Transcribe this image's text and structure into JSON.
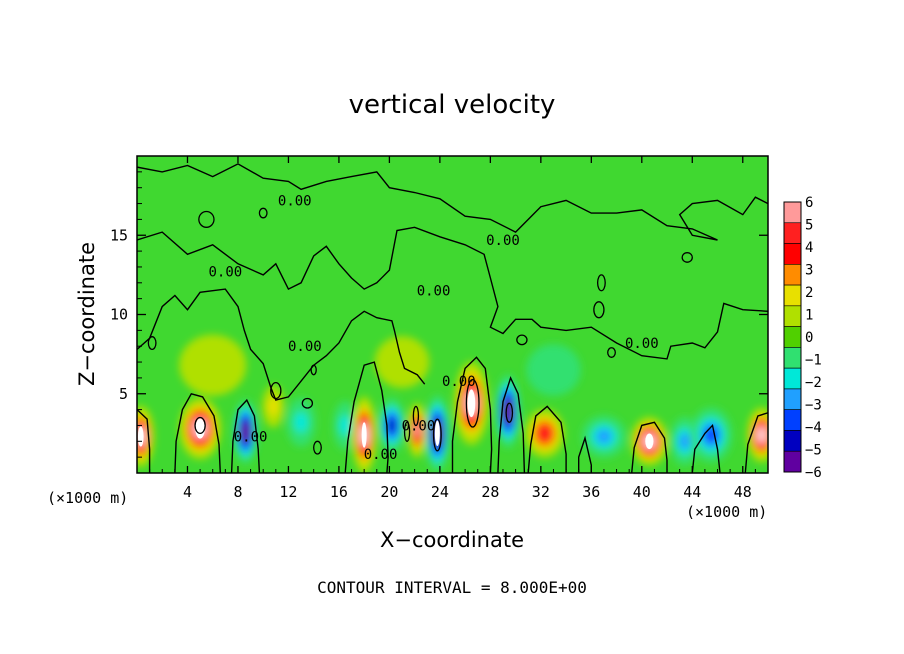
{
  "chart_data": {
    "type": "heatmap",
    "title": "vertical velocity",
    "xlabel": "X−coordinate",
    "ylabel": "Z−coordinate",
    "x_unit": "(×1000 m)",
    "xlim": [
      0,
      50
    ],
    "ylim": [
      0,
      20
    ],
    "x_ticks": [
      4,
      8,
      12,
      16,
      20,
      24,
      28,
      32,
      36,
      40,
      44,
      48
    ],
    "y_ticks": [
      5,
      10,
      15
    ],
    "colorbar": {
      "levels": [
        6,
        5,
        4,
        3,
        2,
        1,
        0,
        -1,
        -2,
        -3,
        -4,
        -5,
        -6
      ],
      "level_labels": [
        "6",
        "5",
        "4",
        "3",
        "2",
        "1",
        "0",
        "−1",
        "−2",
        "−3",
        "−4",
        "−5",
        "−6"
      ],
      "colors": [
        "#ff9a9a",
        "#ff2020",
        "#ff0000",
        "#ff8c00",
        "#e8e000",
        "#b0e000",
        "#50d000",
        "#30e070",
        "#00e8d8",
        "#20a0ff",
        "#0040ff",
        "#0000c0",
        "#6000a0"
      ]
    },
    "contour_labels": [
      {
        "text": "0.00",
        "x": 12.5,
        "z": 17.2
      },
      {
        "text": "0.00",
        "x": 29.0,
        "z": 14.7
      },
      {
        "text": "0.00",
        "x": 7.0,
        "z": 12.7
      },
      {
        "text": "0.00",
        "x": 23.5,
        "z": 11.5
      },
      {
        "text": "0.00",
        "x": 40.0,
        "z": 8.2
      },
      {
        "text": "0.00",
        "x": 13.3,
        "z": 8.0
      },
      {
        "text": "0.00",
        "x": 25.5,
        "z": 5.8
      },
      {
        "text": "0.00",
        "x": 9.0,
        "z": 2.3
      },
      {
        "text": "0.00",
        "x": 22.3,
        "z": 3.0
      },
      {
        "text": "0.00",
        "x": 19.3,
        "z": 1.2
      }
    ],
    "cells": [
      {
        "x": 0.3,
        "z": 2.3,
        "sx": 0.9,
        "sz": 1.8,
        "v": 8
      },
      {
        "x": 5.0,
        "z": 2.8,
        "sx": 1.5,
        "sz": 1.8,
        "v": 8
      },
      {
        "x": 8.6,
        "z": 2.6,
        "sx": 0.8,
        "sz": 1.9,
        "v": -7
      },
      {
        "x": 10.8,
        "z": 4.2,
        "sx": 0.7,
        "sz": 1.2,
        "v": 2
      },
      {
        "x": 13.0,
        "z": 3.2,
        "sx": 1.0,
        "sz": 1.4,
        "v": -2
      },
      {
        "x": 16.5,
        "z": 3.0,
        "sx": 0.8,
        "sz": 1.4,
        "v": -2
      },
      {
        "x": 18.0,
        "z": 2.4,
        "sx": 0.8,
        "sz": 2.3,
        "v": 8
      },
      {
        "x": 20.2,
        "z": 3.0,
        "sx": 0.9,
        "sz": 1.6,
        "v": -5
      },
      {
        "x": 22.2,
        "z": 2.7,
        "sx": 0.6,
        "sz": 1.6,
        "v": 6
      },
      {
        "x": 23.8,
        "z": 2.5,
        "sx": 0.8,
        "sz": 2.3,
        "v": -9
      },
      {
        "x": 26.5,
        "z": 4.4,
        "sx": 1.2,
        "sz": 2.5,
        "v": 10
      },
      {
        "x": 29.4,
        "z": 3.9,
        "sx": 0.8,
        "sz": 2.2,
        "v": -7
      },
      {
        "x": 32.3,
        "z": 2.5,
        "sx": 1.4,
        "sz": 1.4,
        "v": 5
      },
      {
        "x": 37.0,
        "z": 2.3,
        "sx": 1.6,
        "sz": 1.2,
        "v": -3
      },
      {
        "x": 40.6,
        "z": 2.0,
        "sx": 1.3,
        "sz": 1.4,
        "v": 8
      },
      {
        "x": 43.4,
        "z": 2.0,
        "sx": 1.0,
        "sz": 1.4,
        "v": -3
      },
      {
        "x": 45.5,
        "z": 2.4,
        "sx": 1.5,
        "sz": 1.6,
        "v": -4
      },
      {
        "x": 49.5,
        "z": 2.4,
        "sx": 1.0,
        "sz": 1.6,
        "v": 7
      },
      {
        "x": 33.0,
        "z": 6.5,
        "sx": 2.0,
        "sz": 1.5,
        "v": -1
      },
      {
        "x": 6.0,
        "z": 6.8,
        "sx": 2.5,
        "sz": 1.8,
        "v": 1
      },
      {
        "x": 21.0,
        "z": 7.0,
        "sx": 2.0,
        "sz": 1.5,
        "v": 1
      }
    ],
    "contours": [
      {
        "label": "0.00",
        "points": [
          [
            0,
            19.3
          ],
          [
            2,
            19.0
          ],
          [
            4,
            19.4
          ],
          [
            6,
            18.7
          ],
          [
            8,
            19.5
          ],
          [
            10,
            18.6
          ],
          [
            12,
            18.4
          ],
          [
            13,
            17.9
          ],
          [
            15,
            18.4
          ],
          [
            17,
            18.7
          ],
          [
            19,
            19.0
          ],
          [
            20,
            18.0
          ],
          [
            22,
            17.7
          ],
          [
            24,
            17.3
          ],
          [
            26,
            16.2
          ],
          [
            28,
            16.0
          ],
          [
            30,
            15.2
          ],
          [
            32,
            16.8
          ],
          [
            34,
            17.2
          ],
          [
            36,
            16.4
          ],
          [
            38,
            16.4
          ],
          [
            40,
            16.6
          ],
          [
            42,
            15.6
          ],
          [
            44,
            15.4
          ],
          [
            46,
            14.7
          ],
          [
            44,
            15.0
          ],
          [
            43,
            16.3
          ],
          [
            44,
            17.0
          ],
          [
            46,
            17.2
          ],
          [
            48,
            16.3
          ],
          [
            49,
            17.4
          ],
          [
            50,
            17.0
          ]
        ]
      },
      {
        "label": "0.00",
        "points": [
          [
            0,
            14.7
          ],
          [
            2,
            15.2
          ],
          [
            4,
            13.8
          ],
          [
            6,
            14.4
          ],
          [
            8,
            13.2
          ],
          [
            10,
            12.5
          ],
          [
            11,
            13.2
          ],
          [
            12,
            11.6
          ],
          [
            13,
            12.0
          ],
          [
            14,
            13.7
          ],
          [
            15,
            14.3
          ],
          [
            16,
            13.2
          ],
          [
            17,
            12.3
          ],
          [
            18,
            11.6
          ],
          [
            19,
            12.0
          ],
          [
            20,
            12.8
          ],
          [
            20.6,
            15.3
          ],
          [
            22,
            15.5
          ],
          [
            24,
            14.9
          ],
          [
            26,
            14.4
          ],
          [
            27.5,
            13.8
          ],
          [
            28,
            12.3
          ],
          [
            28.6,
            10.5
          ],
          [
            28,
            9.2
          ],
          [
            29,
            8.8
          ],
          [
            30,
            9.7
          ],
          [
            31.3,
            9.7
          ],
          [
            32,
            9.2
          ],
          [
            34,
            9.0
          ],
          [
            36,
            9.2
          ],
          [
            38,
            8.2
          ],
          [
            40,
            7.4
          ],
          [
            42,
            7.2
          ],
          [
            42.3,
            8.0
          ],
          [
            44,
            8.2
          ],
          [
            45,
            7.9
          ],
          [
            46,
            8.9
          ],
          [
            46.5,
            10.7
          ],
          [
            48,
            10.3
          ],
          [
            50,
            10.2
          ]
        ]
      },
      {
        "label": "0.00",
        "points": [
          [
            0,
            7.8
          ],
          [
            1,
            8.5
          ],
          [
            2,
            10.5
          ],
          [
            3,
            11.2
          ],
          [
            4,
            10.3
          ],
          [
            5,
            11.4
          ],
          [
            6,
            11.5
          ],
          [
            7,
            11.6
          ],
          [
            8,
            10.5
          ],
          [
            8.5,
            9.0
          ],
          [
            9,
            7.8
          ],
          [
            10,
            6.9
          ],
          [
            10.6,
            5.4
          ],
          [
            11,
            4.6
          ],
          [
            12,
            4.8
          ],
          [
            13,
            5.8
          ],
          [
            14,
            6.8
          ],
          [
            15,
            7.4
          ],
          [
            16,
            8.2
          ],
          [
            17,
            9.6
          ],
          [
            18,
            10.2
          ],
          [
            19,
            9.8
          ],
          [
            20.2,
            9.6
          ],
          [
            20.4,
            9.0
          ],
          [
            20.8,
            7.6
          ],
          [
            21.2,
            6.6
          ],
          [
            22.2,
            6.2
          ],
          [
            22.8,
            5.6
          ]
        ]
      },
      {
        "label": "",
        "points": [
          [
            16.5,
            0
          ],
          [
            16.7,
            2.0
          ],
          [
            17.2,
            4.5
          ],
          [
            18.0,
            6.8
          ],
          [
            18.8,
            7.0
          ],
          [
            19.4,
            5.2
          ],
          [
            19.8,
            3.0
          ],
          [
            19.9,
            1.0
          ],
          [
            19.8,
            0
          ]
        ]
      },
      {
        "label": "",
        "points": [
          [
            3.0,
            0
          ],
          [
            3.1,
            2.0
          ],
          [
            3.6,
            4.0
          ],
          [
            4.3,
            5.0
          ],
          [
            5.2,
            4.8
          ],
          [
            6.1,
            3.6
          ],
          [
            6.5,
            1.8
          ],
          [
            6.6,
            0
          ]
        ]
      },
      {
        "label": "",
        "points": [
          [
            7.5,
            0
          ],
          [
            7.6,
            2.0
          ],
          [
            8.0,
            4.0
          ],
          [
            8.7,
            4.6
          ],
          [
            9.3,
            3.6
          ],
          [
            9.6,
            1.5
          ],
          [
            9.7,
            0
          ]
        ]
      },
      {
        "label": "",
        "points": [
          [
            25.0,
            0
          ],
          [
            25.0,
            2.0
          ],
          [
            25.4,
            4.5
          ],
          [
            26.0,
            6.6
          ],
          [
            26.9,
            7.3
          ],
          [
            27.6,
            6.6
          ],
          [
            28.0,
            4.0
          ],
          [
            28.1,
            1.5
          ],
          [
            28.0,
            0
          ]
        ]
      },
      {
        "label": "",
        "points": [
          [
            28.6,
            0
          ],
          [
            28.7,
            2.0
          ],
          [
            29.0,
            4.5
          ],
          [
            29.6,
            6.0
          ],
          [
            30.2,
            5.0
          ],
          [
            30.6,
            2.5
          ],
          [
            30.7,
            0
          ]
        ]
      },
      {
        "label": "",
        "points": [
          [
            31.0,
            0
          ],
          [
            31.2,
            1.8
          ],
          [
            31.6,
            3.6
          ],
          [
            32.5,
            4.2
          ],
          [
            33.6,
            3.2
          ],
          [
            34.0,
            1.2
          ],
          [
            34.0,
            0
          ]
        ]
      },
      {
        "label": "",
        "points": [
          [
            39.2,
            0
          ],
          [
            39.4,
            1.6
          ],
          [
            40.0,
            3.0
          ],
          [
            41.0,
            3.2
          ],
          [
            41.8,
            2.2
          ],
          [
            42.0,
            0.8
          ],
          [
            42.0,
            0
          ]
        ]
      },
      {
        "label": "",
        "points": [
          [
            48.2,
            0
          ],
          [
            48.4,
            1.8
          ],
          [
            49.2,
            3.6
          ],
          [
            50,
            3.8
          ]
        ]
      },
      {
        "label": "",
        "points": [
          [
            0,
            4.0
          ],
          [
            0.8,
            3.4
          ],
          [
            1.0,
            1.5
          ],
          [
            1.0,
            0
          ]
        ]
      },
      {
        "label": "",
        "points": [
          [
            35.0,
            0
          ],
          [
            35.0,
            1.0
          ],
          [
            35.5,
            2.2
          ],
          [
            36.0,
            0.5
          ],
          [
            36.0,
            0
          ]
        ]
      },
      {
        "label": "",
        "points": [
          [
            44.0,
            0
          ],
          [
            44.2,
            1.5
          ],
          [
            45.0,
            2.5
          ],
          [
            45.6,
            3.0
          ],
          [
            46.0,
            1.5
          ],
          [
            46.2,
            0
          ]
        ]
      }
    ],
    "closed_contours": [
      {
        "x": 26.6,
        "z": 4.4,
        "rx": 0.5,
        "rz": 1.5
      },
      {
        "x": 23.8,
        "z": 2.4,
        "rx": 0.3,
        "rz": 1.0
      },
      {
        "x": 29.5,
        "z": 3.8,
        "rx": 0.25,
        "rz": 0.6
      },
      {
        "x": 5.0,
        "z": 3.0,
        "rx": 0.4,
        "rz": 0.5
      },
      {
        "x": 5.5,
        "z": 16.0,
        "rx": 0.6,
        "rz": 0.5
      },
      {
        "x": 10.0,
        "z": 16.4,
        "rx": 0.3,
        "rz": 0.3
      },
      {
        "x": 1.2,
        "z": 8.2,
        "rx": 0.3,
        "rz": 0.4
      },
      {
        "x": 30.5,
        "z": 8.4,
        "rx": 0.4,
        "rz": 0.3
      },
      {
        "x": 37.6,
        "z": 7.6,
        "rx": 0.3,
        "rz": 0.3
      },
      {
        "x": 36.8,
        "z": 12.0,
        "rx": 0.3,
        "rz": 0.5
      },
      {
        "x": 36.6,
        "z": 10.3,
        "rx": 0.4,
        "rz": 0.5
      },
      {
        "x": 14.0,
        "z": 6.5,
        "rx": 0.2,
        "rz": 0.3
      },
      {
        "x": 11.0,
        "z": 5.2,
        "rx": 0.4,
        "rz": 0.5
      },
      {
        "x": 13.5,
        "z": 4.4,
        "rx": 0.4,
        "rz": 0.3
      },
      {
        "x": 43.6,
        "z": 13.6,
        "rx": 0.4,
        "rz": 0.3
      },
      {
        "x": 21.4,
        "z": 2.6,
        "rx": 0.2,
        "rz": 0.6
      },
      {
        "x": 22.1,
        "z": 3.6,
        "rx": 0.2,
        "rz": 0.6
      },
      {
        "x": 14.3,
        "z": 1.6,
        "rx": 0.3,
        "rz": 0.4
      }
    ]
  },
  "footer": {
    "contour_interval": "CONTOUR INTERVAL = 8.000E+00"
  }
}
